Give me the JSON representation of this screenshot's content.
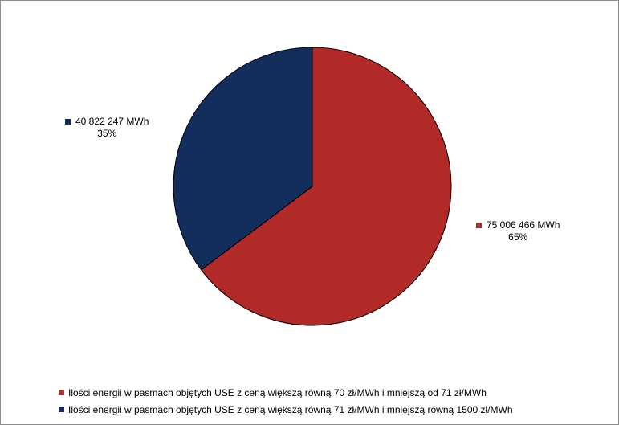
{
  "chart_data": {
    "type": "pie",
    "title": "",
    "slices": [
      {
        "label": "Ilości energii w pasmach objętych USE z ceną większą równą 70 zł/MWh i mniejszą od 71 zł/MWh",
        "value": 75006466,
        "value_label": "75 006 466 MWh",
        "percent_label": "65%",
        "color": "#B22A28"
      },
      {
        "label": "Ilości energii w pasmach objętych USE z ceną większą równą 71 zł/MWh i mniejszą równą 1500 zł/MWh",
        "value": 40822247,
        "value_label": "40 822 247 MWh",
        "percent_label": "35%",
        "color": "#132D5C"
      }
    ],
    "legend_position": "bottom"
  }
}
